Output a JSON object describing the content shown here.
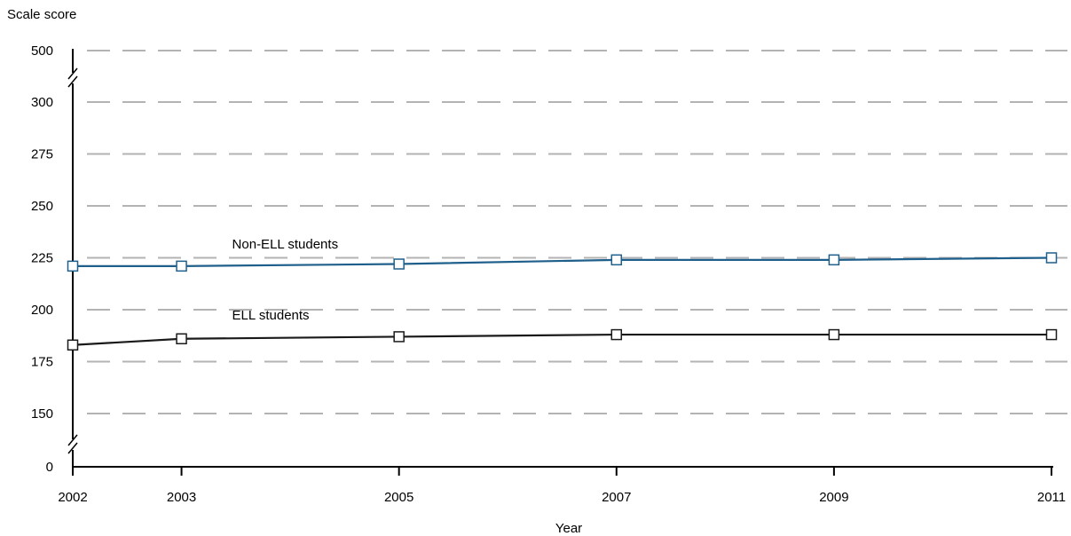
{
  "chart_data": {
    "type": "line",
    "ylabel": "Scale score",
    "xlabel": "Year",
    "x": [
      2002,
      2003,
      2005,
      2007,
      2009,
      2011
    ],
    "y_ticks": [
      500,
      300,
      275,
      250,
      225,
      200,
      175,
      150,
      0
    ],
    "y_breaks": [
      "300-500",
      "0-150"
    ],
    "ylim": [
      150,
      300
    ],
    "grid": true,
    "series": [
      {
        "name": "Non-ELL students",
        "values": [
          221,
          221,
          222,
          224,
          224,
          225
        ],
        "color": "#1f5f8b",
        "marker": "square"
      },
      {
        "name": "ELL students",
        "values": [
          183,
          186,
          187,
          188,
          188,
          188
        ],
        "color": "#1a1a1a",
        "marker": "square"
      }
    ]
  }
}
